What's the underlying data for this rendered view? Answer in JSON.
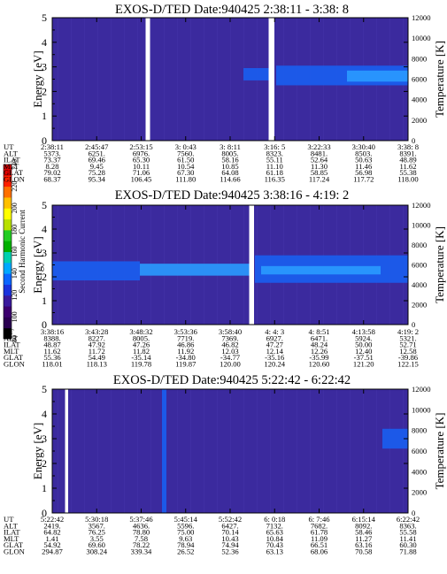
{
  "chart_data": [
    {
      "type": "heatmap",
      "title": "EXOS-D/TED   Date:940425  2:38:11 - 3:38: 8",
      "ylabel": "Energy [eV]",
      "y2label": "Temperature [K]",
      "ylim": [
        0,
        5
      ],
      "yticks": [
        "0",
        "1",
        "2",
        "3",
        "4",
        "5"
      ],
      "y2lim": [
        0,
        12000
      ],
      "y2ticks": [
        "0",
        "2000",
        "4000",
        "6000",
        "8000",
        "10000",
        "12000"
      ],
      "row_labels": [
        "UT",
        "ALT",
        "ILAT",
        "MLT",
        "GLAT",
        "GLON"
      ],
      "columns": [
        [
          "2:38:11",
          "5373.",
          "73.37",
          "8.28",
          "79.02",
          "68.37"
        ],
        [
          "2:45:47",
          "6251.",
          "69.46",
          "9.45",
          "75.28",
          "95.34"
        ],
        [
          "2:53:15",
          "6976.",
          "65.30",
          "10.11",
          "71.06",
          "106.45"
        ],
        [
          "3: 0:43",
          "7560.",
          "61.50",
          "10.54",
          "67.30",
          "111.80"
        ],
        [
          "3: 8:11",
          "8005.",
          "58.16",
          "10.85",
          "64.08",
          "114.66"
        ],
        [
          "3:16: 5",
          "8323.",
          "55.11",
          "11.10",
          "61.18",
          "116.35"
        ],
        [
          "3:22:33",
          "8481.",
          "52.64",
          "11.30",
          "58.85",
          "117.24"
        ],
        [
          "3:30:40",
          "8503.",
          "50.63",
          "11.46",
          "56.98",
          "117.72"
        ],
        [
          "3:38: 8",
          "8391.",
          "48.89",
          "11.62",
          "55.38",
          "118.00"
        ]
      ]
    },
    {
      "type": "heatmap",
      "title": "EXOS-D/TED   Date:940425  3:38:16 - 4:19: 2",
      "ylabel": "Energy [eV]",
      "y2label": "Temperature [K]",
      "ylim": [
        0,
        5
      ],
      "yticks": [
        "0",
        "1",
        "2",
        "3",
        "4",
        "5"
      ],
      "y2lim": [
        0,
        12000
      ],
      "y2ticks": [
        "0",
        "2000",
        "4000",
        "6000",
        "8000",
        "10000",
        "12000"
      ],
      "row_labels": [
        "UT",
        "ALT",
        "ILAT",
        "MLT",
        "GLAT",
        "GLON"
      ],
      "columns": [
        [
          "3:38:16",
          "8388.",
          "48.87",
          "11.62",
          "55.36",
          "118.01"
        ],
        [
          "3:43:28",
          "8227.",
          "47.92",
          "11.72",
          "54.49",
          "118.13"
        ],
        [
          "3:48:32",
          "8005.",
          "47.26",
          "11.82",
          "-35.14",
          "119.78"
        ],
        [
          "3:53:36",
          "7719.",
          "46.86",
          "11.92",
          "-34.80",
          "119.87"
        ],
        [
          "3:58:40",
          "7369.",
          "46.82",
          "12.03",
          "-34.77",
          "120.00"
        ],
        [
          "4: 4: 3",
          "6927.",
          "47.27",
          "12.14",
          "-35.16",
          "120.24"
        ],
        [
          "4: 8:51",
          "6471.",
          "48.24",
          "12.26",
          "-35.99",
          "120.60"
        ],
        [
          "4:13:58",
          "5924.",
          "50.00",
          "12.40",
          "-37.51",
          "121.20"
        ],
        [
          "4:19: 2",
          "5321.",
          "52.71",
          "12.58",
          "-39.86",
          "122.15"
        ]
      ]
    },
    {
      "type": "heatmap",
      "title": "EXOS-D/TED   Date:940425  5:22:42 - 6:22:42",
      "ylabel": "Energy [eV]",
      "y2label": "Temperature [K]",
      "ylim": [
        0,
        5
      ],
      "yticks": [
        "0",
        "1",
        "2",
        "3",
        "4",
        "5"
      ],
      "y2lim": [
        0,
        12000
      ],
      "y2ticks": [
        "0",
        "2000",
        "4000",
        "6000",
        "8000",
        "10000",
        "12000"
      ],
      "row_labels": [
        "UT",
        "ALT",
        "ILAT",
        "MLT",
        "GLAT",
        "GLON"
      ],
      "columns": [
        [
          "5:22:42",
          "2419.",
          "64.82",
          "1.41",
          "54.92",
          "294.87"
        ],
        [
          "5:30:18",
          "3567.",
          "76.25",
          "3.55",
          "69.60",
          "308.24"
        ],
        [
          "5:37:46",
          "4636.",
          "78.80",
          "7.58",
          "78.22",
          "339.34"
        ],
        [
          "5:45:14",
          "5596.",
          "75.00",
          "9.63",
          "78.94",
          "26.52"
        ],
        [
          "5:52:42",
          "6427.",
          "70.14",
          "10.43",
          "74.94",
          "52.36"
        ],
        [
          "6: 0:18",
          "7132.",
          "65.63",
          "10.84",
          "70.43",
          "63.13"
        ],
        [
          "6: 7:46",
          "7682.",
          "61.78",
          "11.09",
          "66.51",
          "68.06"
        ],
        [
          "6:15:14",
          "8092.",
          "58.46",
          "11.27",
          "63.16",
          "70.58"
        ],
        [
          "6:22:42",
          "8363.",
          "55.58",
          "11.41",
          "60.30",
          "71.88"
        ]
      ]
    }
  ],
  "colorbar": {
    "label": "Second Harmonic Current",
    "ticks": [
      "80",
      "100",
      "120",
      "140",
      "160",
      "180",
      "200",
      "220",
      "240"
    ],
    "colors": [
      "#000000",
      "#2a0050",
      "#3c006e",
      "#3a1a9c",
      "#1a33dd",
      "#0b66ff",
      "#00a8ff",
      "#00d0b0",
      "#00b000",
      "#22cc22",
      "#b8e000",
      "#ffff00",
      "#ffc000",
      "#ff7000",
      "#ff2000",
      "#e00000"
    ]
  },
  "colors": {
    "background": "#3b2a9e",
    "intense": "#1a5ef0",
    "bright": "#2a9aff",
    "gap": "#ffffff"
  }
}
